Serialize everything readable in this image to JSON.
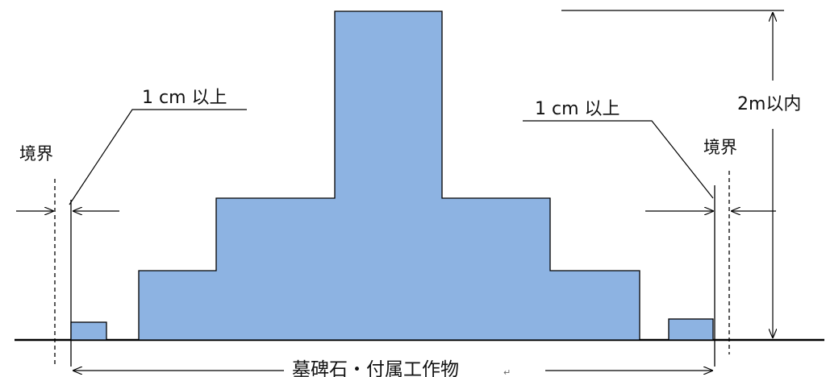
{
  "labels": {
    "min_gap_left": "1 cm 以上",
    "min_gap_right": "1 cm 以上",
    "border_left": "境界",
    "border_right": "境界",
    "max_height": "2m以内",
    "structure": "墓碑石・付属工作物"
  },
  "colors": {
    "structure_fill": "#8db3e2",
    "line": "#000000",
    "background": "#ffffff"
  }
}
